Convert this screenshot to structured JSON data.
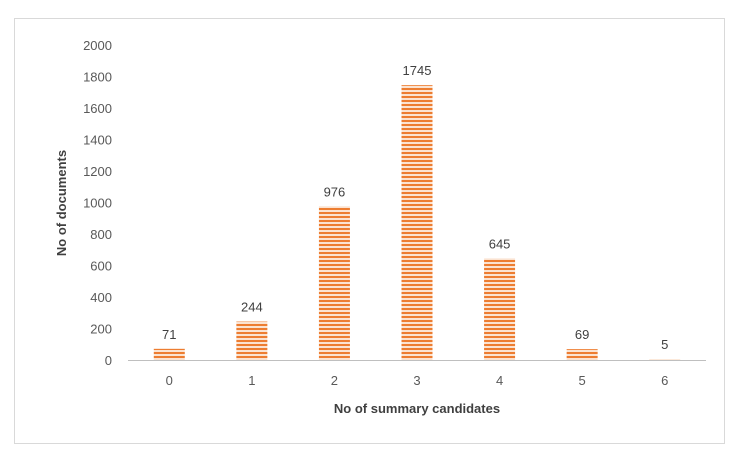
{
  "chart_data": {
    "type": "bar",
    "title": "",
    "xlabel": "No of summary candidates",
    "ylabel": "No of documents",
    "categories": [
      "0",
      "1",
      "2",
      "3",
      "4",
      "5",
      "6"
    ],
    "values": [
      71,
      244,
      976,
      1745,
      645,
      69,
      5
    ],
    "data_labels": [
      "71",
      "244",
      "976",
      "1745",
      "645",
      "69",
      "5"
    ],
    "ylim": [
      0,
      2000
    ],
    "yticks": [
      "0",
      "200",
      "400",
      "600",
      "800",
      "1000",
      "1200",
      "1400",
      "1600",
      "1800",
      "2000"
    ],
    "grid": false,
    "legend": "none",
    "bar_color": "#ed7d31",
    "bar_stripe_color": "#fbe3d1"
  }
}
